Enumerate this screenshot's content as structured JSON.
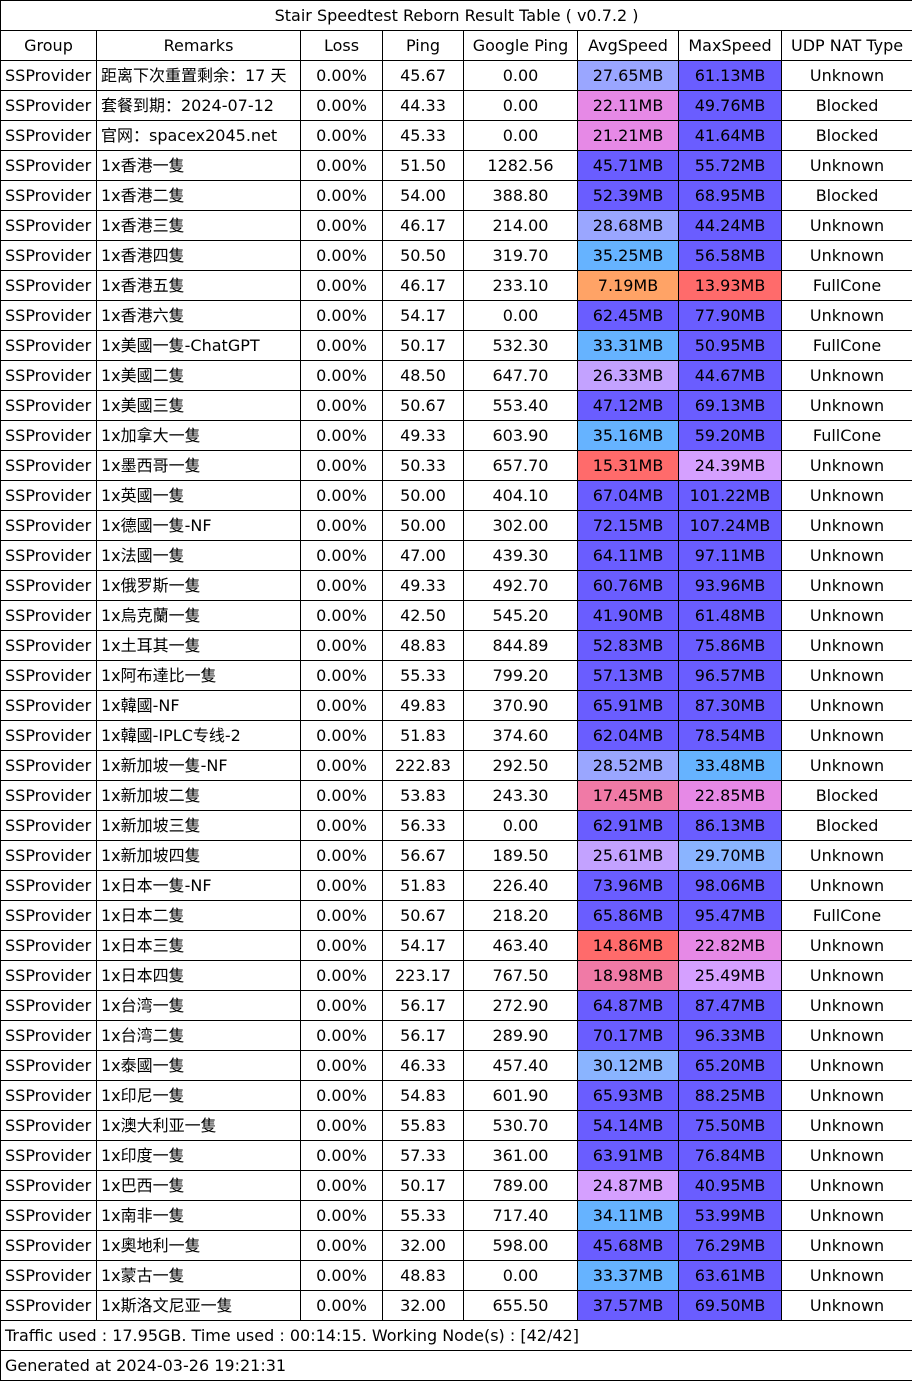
{
  "title": "Stair Speedtest Reborn Result Table ( v0.7.2 )",
  "headers": [
    "Group",
    "Remarks",
    "Loss",
    "Ping",
    "Google Ping",
    "AvgSpeed",
    "MaxSpeed",
    "UDP NAT Type"
  ],
  "colors": {
    "speed_fast": "#6a5dff",
    "speed_blue_lavender": "#9aa6ff",
    "speed_sky": "#66b3ff",
    "speed_light_blue": "#8ab4ff",
    "speed_lavender": "#c3a2ff",
    "speed_violet": "#d5a0ff",
    "speed_pink": "#e689e6",
    "speed_rose": "#f07aa6",
    "speed_red": "#ff6b6b",
    "speed_orange": "#ffa366"
  },
  "rows": [
    {
      "group": "SSProvider",
      "remarks": "距离下次重置剩余：17 天",
      "loss": "0.00%",
      "ping": "45.67",
      "gping": "0.00",
      "avg": "27.65MB",
      "avg_color": "#9aa6ff",
      "max": "61.13MB",
      "max_color": "#6a5dff",
      "nat": "Unknown"
    },
    {
      "group": "SSProvider",
      "remarks": "套餐到期：2024-07-12",
      "loss": "0.00%",
      "ping": "44.33",
      "gping": "0.00",
      "avg": "22.11MB",
      "avg_color": "#e689e6",
      "max": "49.76MB",
      "max_color": "#6a5dff",
      "nat": "Blocked"
    },
    {
      "group": "SSProvider",
      "remarks": "官网：spacex2045.net",
      "loss": "0.00%",
      "ping": "45.33",
      "gping": "0.00",
      "avg": "21.21MB",
      "avg_color": "#e689e6",
      "max": "41.64MB",
      "max_color": "#6a5dff",
      "nat": "Blocked"
    },
    {
      "group": "SSProvider",
      "remarks": "1x香港一隻",
      "loss": "0.00%",
      "ping": "51.50",
      "gping": "1282.56",
      "avg": "45.71MB",
      "avg_color": "#6a5dff",
      "max": "55.72MB",
      "max_color": "#6a5dff",
      "nat": "Unknown"
    },
    {
      "group": "SSProvider",
      "remarks": "1x香港二隻",
      "loss": "0.00%",
      "ping": "54.00",
      "gping": "388.80",
      "avg": "52.39MB",
      "avg_color": "#6a5dff",
      "max": "68.95MB",
      "max_color": "#6a5dff",
      "nat": "Blocked"
    },
    {
      "group": "SSProvider",
      "remarks": "1x香港三隻",
      "loss": "0.00%",
      "ping": "46.17",
      "gping": "214.00",
      "avg": "28.68MB",
      "avg_color": "#9aa6ff",
      "max": "44.24MB",
      "max_color": "#6a5dff",
      "nat": "Unknown"
    },
    {
      "group": "SSProvider",
      "remarks": "1x香港四隻",
      "loss": "0.00%",
      "ping": "50.50",
      "gping": "319.70",
      "avg": "35.25MB",
      "avg_color": "#66b3ff",
      "max": "56.58MB",
      "max_color": "#6a5dff",
      "nat": "Unknown"
    },
    {
      "group": "SSProvider",
      "remarks": "1x香港五隻",
      "loss": "0.00%",
      "ping": "46.17",
      "gping": "233.10",
      "avg": "7.19MB",
      "avg_color": "#ffa366",
      "max": "13.93MB",
      "max_color": "#ff6b6b",
      "nat": "FullCone"
    },
    {
      "group": "SSProvider",
      "remarks": "1x香港六隻",
      "loss": "0.00%",
      "ping": "54.17",
      "gping": "0.00",
      "avg": "62.45MB",
      "avg_color": "#6a5dff",
      "max": "77.90MB",
      "max_color": "#6a5dff",
      "nat": "Unknown"
    },
    {
      "group": "SSProvider",
      "remarks": "1x美國一隻-ChatGPT",
      "loss": "0.00%",
      "ping": "50.17",
      "gping": "532.30",
      "avg": "33.31MB",
      "avg_color": "#66b3ff",
      "max": "50.95MB",
      "max_color": "#6a5dff",
      "nat": "FullCone"
    },
    {
      "group": "SSProvider",
      "remarks": "1x美國二隻",
      "loss": "0.00%",
      "ping": "48.50",
      "gping": "647.70",
      "avg": "26.33MB",
      "avg_color": "#c3a2ff",
      "max": "44.67MB",
      "max_color": "#6a5dff",
      "nat": "Unknown"
    },
    {
      "group": "SSProvider",
      "remarks": "1x美國三隻",
      "loss": "0.00%",
      "ping": "50.67",
      "gping": "553.40",
      "avg": "47.12MB",
      "avg_color": "#6a5dff",
      "max": "69.13MB",
      "max_color": "#6a5dff",
      "nat": "Unknown"
    },
    {
      "group": "SSProvider",
      "remarks": "1x加拿大一隻",
      "loss": "0.00%",
      "ping": "49.33",
      "gping": "603.90",
      "avg": "35.16MB",
      "avg_color": "#66b3ff",
      "max": "59.20MB",
      "max_color": "#6a5dff",
      "nat": "FullCone"
    },
    {
      "group": "SSProvider",
      "remarks": "1x墨西哥一隻",
      "loss": "0.00%",
      "ping": "50.33",
      "gping": "657.70",
      "avg": "15.31MB",
      "avg_color": "#ff6b6b",
      "max": "24.39MB",
      "max_color": "#d5a0ff",
      "nat": "Unknown"
    },
    {
      "group": "SSProvider",
      "remarks": "1x英國一隻",
      "loss": "0.00%",
      "ping": "50.00",
      "gping": "404.10",
      "avg": "67.04MB",
      "avg_color": "#6a5dff",
      "max": "101.22MB",
      "max_color": "#6a5dff",
      "nat": "Unknown"
    },
    {
      "group": "SSProvider",
      "remarks": "1x德國一隻-NF",
      "loss": "0.00%",
      "ping": "50.00",
      "gping": "302.00",
      "avg": "72.15MB",
      "avg_color": "#6a5dff",
      "max": "107.24MB",
      "max_color": "#6a5dff",
      "nat": "Unknown"
    },
    {
      "group": "SSProvider",
      "remarks": "1x法國一隻",
      "loss": "0.00%",
      "ping": "47.00",
      "gping": "439.30",
      "avg": "64.11MB",
      "avg_color": "#6a5dff",
      "max": "97.11MB",
      "max_color": "#6a5dff",
      "nat": "Unknown"
    },
    {
      "group": "SSProvider",
      "remarks": "1x俄罗斯一隻",
      "loss": "0.00%",
      "ping": "49.33",
      "gping": "492.70",
      "avg": "60.76MB",
      "avg_color": "#6a5dff",
      "max": "93.96MB",
      "max_color": "#6a5dff",
      "nat": "Unknown"
    },
    {
      "group": "SSProvider",
      "remarks": "1x烏克蘭一隻",
      "loss": "0.00%",
      "ping": "42.50",
      "gping": "545.20",
      "avg": "41.90MB",
      "avg_color": "#6a5dff",
      "max": "61.48MB",
      "max_color": "#6a5dff",
      "nat": "Unknown"
    },
    {
      "group": "SSProvider",
      "remarks": "1x土耳其一隻",
      "loss": "0.00%",
      "ping": "48.83",
      "gping": "844.89",
      "avg": "52.83MB",
      "avg_color": "#6a5dff",
      "max": "75.86MB",
      "max_color": "#6a5dff",
      "nat": "Unknown"
    },
    {
      "group": "SSProvider",
      "remarks": "1x阿布達比一隻",
      "loss": "0.00%",
      "ping": "55.33",
      "gping": "799.20",
      "avg": "57.13MB",
      "avg_color": "#6a5dff",
      "max": "96.57MB",
      "max_color": "#6a5dff",
      "nat": "Unknown"
    },
    {
      "group": "SSProvider",
      "remarks": "1x韓國-NF",
      "loss": "0.00%",
      "ping": "49.83",
      "gping": "370.90",
      "avg": "65.91MB",
      "avg_color": "#6a5dff",
      "max": "87.30MB",
      "max_color": "#6a5dff",
      "nat": "Unknown"
    },
    {
      "group": "SSProvider",
      "remarks": "1x韓國-IPLC专线-2",
      "loss": "0.00%",
      "ping": "51.83",
      "gping": "374.60",
      "avg": "62.04MB",
      "avg_color": "#6a5dff",
      "max": "78.54MB",
      "max_color": "#6a5dff",
      "nat": "Unknown"
    },
    {
      "group": "SSProvider",
      "remarks": "1x新加坡一隻-NF",
      "loss": "0.00%",
      "ping": "222.83",
      "gping": "292.50",
      "avg": "28.52MB",
      "avg_color": "#9aa6ff",
      "max": "33.48MB",
      "max_color": "#66b3ff",
      "nat": "Unknown"
    },
    {
      "group": "SSProvider",
      "remarks": "1x新加坡二隻",
      "loss": "0.00%",
      "ping": "53.83",
      "gping": "243.30",
      "avg": "17.45MB",
      "avg_color": "#f07aa6",
      "max": "22.85MB",
      "max_color": "#e689e6",
      "nat": "Blocked"
    },
    {
      "group": "SSProvider",
      "remarks": "1x新加坡三隻",
      "loss": "0.00%",
      "ping": "56.33",
      "gping": "0.00",
      "avg": "62.91MB",
      "avg_color": "#6a5dff",
      "max": "86.13MB",
      "max_color": "#6a5dff",
      "nat": "Blocked"
    },
    {
      "group": "SSProvider",
      "remarks": "1x新加坡四隻",
      "loss": "0.00%",
      "ping": "56.67",
      "gping": "189.50",
      "avg": "25.61MB",
      "avg_color": "#c3a2ff",
      "max": "29.70MB",
      "max_color": "#8ab4ff",
      "nat": "Unknown"
    },
    {
      "group": "SSProvider",
      "remarks": "1x日本一隻-NF",
      "loss": "0.00%",
      "ping": "51.83",
      "gping": "226.40",
      "avg": "73.96MB",
      "avg_color": "#6a5dff",
      "max": "98.06MB",
      "max_color": "#6a5dff",
      "nat": "Unknown"
    },
    {
      "group": "SSProvider",
      "remarks": "1x日本二隻",
      "loss": "0.00%",
      "ping": "50.67",
      "gping": "218.20",
      "avg": "65.86MB",
      "avg_color": "#6a5dff",
      "max": "95.47MB",
      "max_color": "#6a5dff",
      "nat": "FullCone"
    },
    {
      "group": "SSProvider",
      "remarks": "1x日本三隻",
      "loss": "0.00%",
      "ping": "54.17",
      "gping": "463.40",
      "avg": "14.86MB",
      "avg_color": "#ff6b6b",
      "max": "22.82MB",
      "max_color": "#e689e6",
      "nat": "Unknown"
    },
    {
      "group": "SSProvider",
      "remarks": "1x日本四隻",
      "loss": "0.00%",
      "ping": "223.17",
      "gping": "767.50",
      "avg": "18.98MB",
      "avg_color": "#f07aa6",
      "max": "25.49MB",
      "max_color": "#d5a0ff",
      "nat": "Unknown"
    },
    {
      "group": "SSProvider",
      "remarks": "1x台湾一隻",
      "loss": "0.00%",
      "ping": "56.17",
      "gping": "272.90",
      "avg": "64.87MB",
      "avg_color": "#6a5dff",
      "max": "87.47MB",
      "max_color": "#6a5dff",
      "nat": "Unknown"
    },
    {
      "group": "SSProvider",
      "remarks": "1x台湾二隻",
      "loss": "0.00%",
      "ping": "56.17",
      "gping": "289.90",
      "avg": "70.17MB",
      "avg_color": "#6a5dff",
      "max": "96.33MB",
      "max_color": "#6a5dff",
      "nat": "Unknown"
    },
    {
      "group": "SSProvider",
      "remarks": "1x泰國一隻",
      "loss": "0.00%",
      "ping": "46.33",
      "gping": "457.40",
      "avg": "30.12MB",
      "avg_color": "#8ab4ff",
      "max": "65.20MB",
      "max_color": "#6a5dff",
      "nat": "Unknown"
    },
    {
      "group": "SSProvider",
      "remarks": "1x印尼一隻",
      "loss": "0.00%",
      "ping": "54.83",
      "gping": "601.90",
      "avg": "65.93MB",
      "avg_color": "#6a5dff",
      "max": "88.25MB",
      "max_color": "#6a5dff",
      "nat": "Unknown"
    },
    {
      "group": "SSProvider",
      "remarks": "1x澳大利亚一隻",
      "loss": "0.00%",
      "ping": "55.83",
      "gping": "530.70",
      "avg": "54.14MB",
      "avg_color": "#6a5dff",
      "max": "75.50MB",
      "max_color": "#6a5dff",
      "nat": "Unknown"
    },
    {
      "group": "SSProvider",
      "remarks": "1x印度一隻",
      "loss": "0.00%",
      "ping": "57.33",
      "gping": "361.00",
      "avg": "63.91MB",
      "avg_color": "#6a5dff",
      "max": "76.84MB",
      "max_color": "#6a5dff",
      "nat": "Unknown"
    },
    {
      "group": "SSProvider",
      "remarks": "1x巴西一隻",
      "loss": "0.00%",
      "ping": "50.17",
      "gping": "789.00",
      "avg": "24.87MB",
      "avg_color": "#d5a0ff",
      "max": "40.95MB",
      "max_color": "#6a5dff",
      "nat": "Unknown"
    },
    {
      "group": "SSProvider",
      "remarks": "1x南非一隻",
      "loss": "0.00%",
      "ping": "55.33",
      "gping": "717.40",
      "avg": "34.11MB",
      "avg_color": "#66b3ff",
      "max": "53.99MB",
      "max_color": "#6a5dff",
      "nat": "Unknown"
    },
    {
      "group": "SSProvider",
      "remarks": "1x奧地利一隻",
      "loss": "0.00%",
      "ping": "32.00",
      "gping": "598.00",
      "avg": "45.68MB",
      "avg_color": "#6a5dff",
      "max": "76.29MB",
      "max_color": "#6a5dff",
      "nat": "Unknown"
    },
    {
      "group": "SSProvider",
      "remarks": "1x蒙古一隻",
      "loss": "0.00%",
      "ping": "48.83",
      "gping": "0.00",
      "avg": "33.37MB",
      "avg_color": "#66b3ff",
      "max": "63.61MB",
      "max_color": "#6a5dff",
      "nat": "Unknown"
    },
    {
      "group": "SSProvider",
      "remarks": "1x斯洛文尼亚一隻",
      "loss": "0.00%",
      "ping": "32.00",
      "gping": "655.50",
      "avg": "37.57MB",
      "avg_color": "#6a5dff",
      "max": "69.50MB",
      "max_color": "#6a5dff",
      "nat": "Unknown"
    }
  ],
  "footer": {
    "traffic": "Traffic used : 17.95GB. Time used : 00:14:15. Working Node(s) : [42/42]",
    "generated": "Generated at 2024-03-26 19:21:31"
  }
}
